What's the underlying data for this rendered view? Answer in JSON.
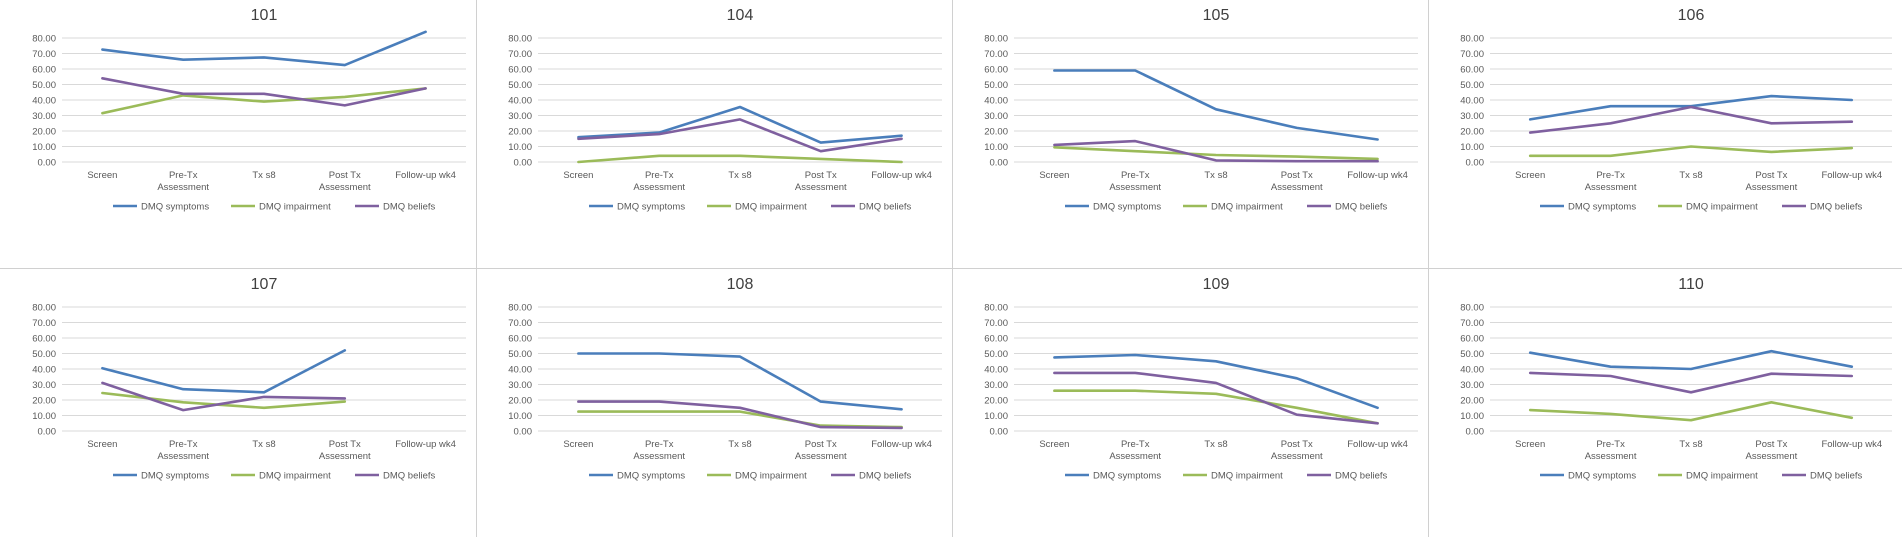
{
  "colors": {
    "symptoms": "#4a7ebb",
    "impairment": "#9bbb59",
    "beliefs": "#7f609f"
  },
  "chart_data": [
    {
      "type": "line",
      "title": "101",
      "categories": [
        "Screen",
        "Pre-Tx Assessment",
        "Tx s8",
        "Post Tx Assessment",
        "Follow-up wk4"
      ],
      "ylim": [
        0,
        80
      ],
      "yticks": [
        "0.00",
        "10.00",
        "20.00",
        "30.00",
        "40.00",
        "50.00",
        "60.00",
        "70.00",
        "80.00"
      ],
      "series": [
        {
          "name": "DMQ symptoms",
          "values": [
            72.5,
            66.0,
            67.5,
            62.5,
            84.0
          ]
        },
        {
          "name": "DMQ impairment",
          "values": [
            31.5,
            43.0,
            39.0,
            42.0,
            47.5
          ]
        },
        {
          "name": "DMQ beliefs",
          "values": [
            54.0,
            44.0,
            44.0,
            36.5,
            47.5
          ]
        }
      ]
    },
    {
      "type": "line",
      "title": "104",
      "categories": [
        "Screen",
        "Pre-Tx Assessment",
        "Tx s8",
        "Post Tx Assessment",
        "Follow-up wk4"
      ],
      "ylim": [
        0,
        80
      ],
      "yticks": [
        "0.00",
        "10.00",
        "20.00",
        "30.00",
        "40.00",
        "50.00",
        "60.00",
        "70.00",
        "80.00"
      ],
      "series": [
        {
          "name": "DMQ symptoms",
          "values": [
            16.0,
            19.0,
            35.5,
            12.5,
            17.0
          ]
        },
        {
          "name": "DMQ impairment",
          "values": [
            0.0,
            4.0,
            4.0,
            2.0,
            0.0
          ]
        },
        {
          "name": "DMQ beliefs",
          "values": [
            15.0,
            18.0,
            27.5,
            7.0,
            15.0
          ]
        }
      ]
    },
    {
      "type": "line",
      "title": "105",
      "categories": [
        "Screen",
        "Pre-Tx Assessment",
        "Tx s8",
        "Post Tx Assessment",
        "Follow-up wk4"
      ],
      "ylim": [
        0,
        80
      ],
      "yticks": [
        "0.00",
        "10.00",
        "20.00",
        "30.00",
        "40.00",
        "50.00",
        "60.00",
        "70.00",
        "80.00"
      ],
      "series": [
        {
          "name": "DMQ symptoms",
          "values": [
            59.0,
            59.0,
            34.0,
            22.0,
            14.5
          ]
        },
        {
          "name": "DMQ impairment",
          "values": [
            9.5,
            7.0,
            4.5,
            3.5,
            2.0
          ]
        },
        {
          "name": "DMQ beliefs",
          "values": [
            11.0,
            13.5,
            1.0,
            0.5,
            0.5
          ]
        }
      ]
    },
    {
      "type": "line",
      "title": "106",
      "categories": [
        "Screen",
        "Pre-Tx Assessment",
        "Tx s8",
        "Post Tx Assessment",
        "Follow-up wk4"
      ],
      "ylim": [
        0,
        80
      ],
      "yticks": [
        "0.00",
        "10.00",
        "20.00",
        "30.00",
        "40.00",
        "50.00",
        "60.00",
        "70.00",
        "80.00"
      ],
      "series": [
        {
          "name": "DMQ symptoms",
          "values": [
            27.5,
            36.0,
            36.0,
            42.5,
            40.0
          ]
        },
        {
          "name": "DMQ impairment",
          "values": [
            4.0,
            4.0,
            10.0,
            6.5,
            9.0
          ]
        },
        {
          "name": "DMQ beliefs",
          "values": [
            19.0,
            25.0,
            35.5,
            25.0,
            26.0
          ]
        }
      ]
    },
    {
      "type": "line",
      "title": "107",
      "categories": [
        "Screen",
        "Pre-Tx Assessment",
        "Tx s8",
        "Post Tx Assessment",
        "Follow-up wk4"
      ],
      "ylim": [
        0,
        80
      ],
      "yticks": [
        "0.00",
        "10.00",
        "20.00",
        "30.00",
        "40.00",
        "50.00",
        "60.00",
        "70.00",
        "80.00"
      ],
      "series": [
        {
          "name": "DMQ symptoms",
          "values": [
            40.5,
            27.0,
            25.0,
            52.0,
            null
          ]
        },
        {
          "name": "DMQ impairment",
          "values": [
            24.5,
            18.5,
            15.0,
            19.0,
            null
          ]
        },
        {
          "name": "DMQ beliefs",
          "values": [
            31.0,
            13.5,
            22.0,
            21.0,
            null
          ]
        }
      ]
    },
    {
      "type": "line",
      "title": "108",
      "categories": [
        "Screen",
        "Pre-Tx Assessment",
        "Tx s8",
        "Post Tx Assessment",
        "Follow-up wk4"
      ],
      "ylim": [
        0,
        80
      ],
      "yticks": [
        "0.00",
        "10.00",
        "20.00",
        "30.00",
        "40.00",
        "50.00",
        "60.00",
        "70.00",
        "80.00"
      ],
      "series": [
        {
          "name": "DMQ symptoms",
          "values": [
            50.0,
            50.0,
            48.0,
            19.0,
            14.0
          ]
        },
        {
          "name": "DMQ impairment",
          "values": [
            12.5,
            12.5,
            12.5,
            3.5,
            2.5
          ]
        },
        {
          "name": "DMQ beliefs",
          "values": [
            19.0,
            19.0,
            15.0,
            2.5,
            2.0
          ]
        }
      ]
    },
    {
      "type": "line",
      "title": "109",
      "categories": [
        "Screen",
        "Pre-Tx Assessment",
        "Tx s8",
        "Post Tx Assessment",
        "Follow-up wk4"
      ],
      "ylim": [
        0,
        80
      ],
      "yticks": [
        "0.00",
        "10.00",
        "20.00",
        "30.00",
        "40.00",
        "50.00",
        "60.00",
        "70.00",
        "80.00"
      ],
      "series": [
        {
          "name": "DMQ symptoms",
          "values": [
            47.5,
            49.0,
            45.0,
            34.0,
            15.0
          ]
        },
        {
          "name": "DMQ impairment",
          "values": [
            26.0,
            26.0,
            24.0,
            15.0,
            5.0
          ]
        },
        {
          "name": "DMQ beliefs",
          "values": [
            37.5,
            37.5,
            31.0,
            10.5,
            5.0
          ]
        }
      ]
    },
    {
      "type": "line",
      "title": "110",
      "categories": [
        "Screen",
        "Pre-Tx Assessment",
        "Tx s8",
        "Post Tx Assessment",
        "Follow-up wk4"
      ],
      "ylim": [
        0,
        80
      ],
      "yticks": [
        "0.00",
        "10.00",
        "20.00",
        "30.00",
        "40.00",
        "50.00",
        "60.00",
        "70.00",
        "80.00"
      ],
      "series": [
        {
          "name": "DMQ symptoms",
          "values": [
            50.5,
            41.5,
            40.0,
            51.5,
            41.5
          ]
        },
        {
          "name": "DMQ impairment",
          "values": [
            13.5,
            11.0,
            7.0,
            18.5,
            8.5
          ]
        },
        {
          "name": "DMQ beliefs",
          "values": [
            37.5,
            35.5,
            25.0,
            37.0,
            35.5
          ]
        }
      ]
    }
  ]
}
